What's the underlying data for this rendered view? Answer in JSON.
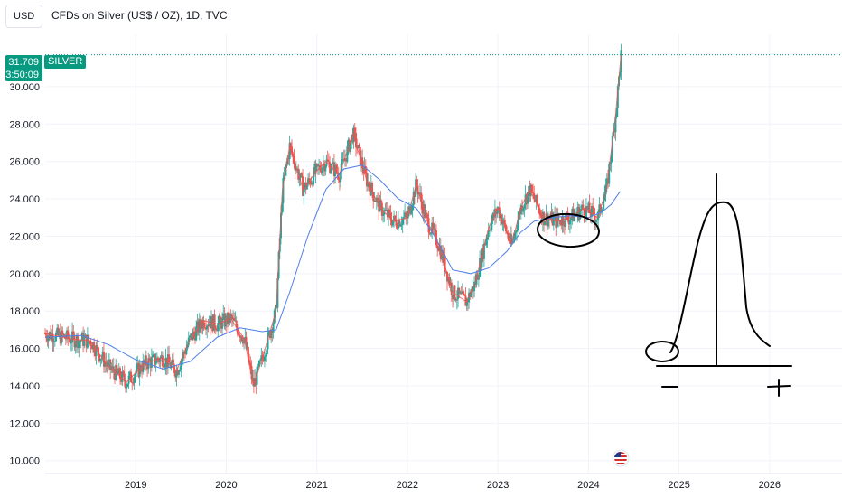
{
  "header": {
    "currency": "USD",
    "title": "CFDs on Silver (US$ / OZ), 1D, TVC"
  },
  "price_label": {
    "price": "31.709",
    "countdown": "03:50:09",
    "symbol": "SILVER",
    "color": "#089981"
  },
  "chart_data": {
    "type": "line",
    "title": "CFDs on Silver (US$ / OZ), 1D, TVC",
    "xlabel": "",
    "ylabel": "",
    "y_ticks": [
      "10.000",
      "12.000",
      "14.000",
      "16.000",
      "18.000",
      "20.000",
      "22.000",
      "24.000",
      "26.000",
      "28.000",
      "30.000"
    ],
    "x_ticks": [
      "2019",
      "2020",
      "2021",
      "2022",
      "2023",
      "2024",
      "2025",
      "2026"
    ],
    "xlim": [
      2018.0,
      2026.8
    ],
    "ylim": [
      9.6,
      32.8
    ],
    "last_price": 31.709,
    "grid": true,
    "series": [
      {
        "color": "#ef5350",
        "x": [
          2018.0,
          2018.3,
          2018.5,
          2018.7,
          2018.9,
          2019.1,
          2019.3,
          2019.45,
          2019.6,
          2019.75,
          2019.9,
          2020.05,
          2020.2,
          2020.3,
          2020.4,
          2020.55,
          2020.62,
          2020.7,
          2020.85,
          2021.0,
          2021.1,
          2021.25,
          2021.4,
          2021.55,
          2021.7,
          2021.85,
          2022.0,
          2022.1,
          2022.2,
          2022.35,
          2022.5,
          2022.65,
          2022.75,
          2022.9,
          2023.0,
          2023.15,
          2023.25,
          2023.35,
          2023.5,
          2023.65,
          2023.8,
          2023.95,
          2024.1,
          2024.2,
          2024.3,
          2024.36
        ],
        "values": [
          16.8,
          16.5,
          16.4,
          15.0,
          14.2,
          15.2,
          15.5,
          14.8,
          16.5,
          17.5,
          17.3,
          17.6,
          16.5,
          14.0,
          15.5,
          18.0,
          24.5,
          26.8,
          24.5,
          25.5,
          26.0,
          25.3,
          27.5,
          25.0,
          23.5,
          22.8,
          23.0,
          24.8,
          23.0,
          21.5,
          19.0,
          18.5,
          19.5,
          22.5,
          23.5,
          21.5,
          23.5,
          24.5,
          23.0,
          22.8,
          23.0,
          23.5,
          23.0,
          24.5,
          28.5,
          31.7
        ]
      },
      {
        "color": "#4e7ee8",
        "x": [
          2018.0,
          2018.4,
          2018.7,
          2019.0,
          2019.3,
          2019.6,
          2019.9,
          2020.15,
          2020.4,
          2020.55,
          2020.7,
          2020.9,
          2021.1,
          2021.3,
          2021.5,
          2021.7,
          2021.9,
          2022.1,
          2022.3,
          2022.5,
          2022.7,
          2022.9,
          2023.1,
          2023.25,
          2023.4,
          2023.6,
          2023.8,
          2024.0,
          2024.15,
          2024.25,
          2024.35
        ],
        "values": [
          16.6,
          16.7,
          16.2,
          15.4,
          14.9,
          15.3,
          16.6,
          17.1,
          16.9,
          17.0,
          19.0,
          22.0,
          24.5,
          25.6,
          25.8,
          25.0,
          24.0,
          23.5,
          22.0,
          20.2,
          20.0,
          20.3,
          21.2,
          22.2,
          22.8,
          23.0,
          23.1,
          23.0,
          23.3,
          23.7,
          24.4
        ]
      }
    ]
  },
  "annotation": {
    "minus": "—",
    "plus": "+"
  },
  "flag_icon_name": "us-flag-icon"
}
